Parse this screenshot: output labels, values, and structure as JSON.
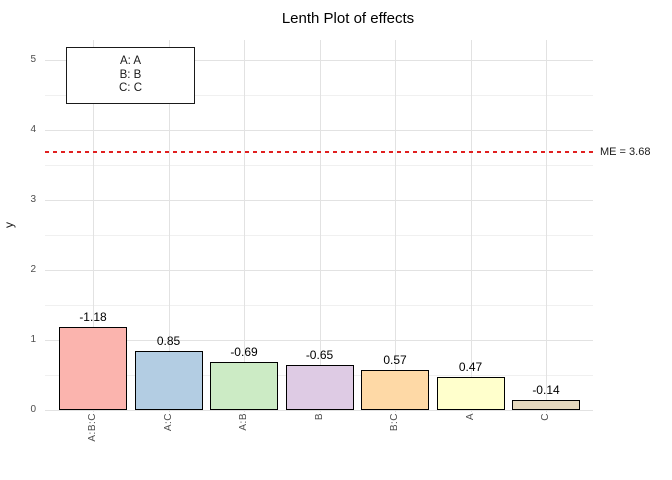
{
  "chart_data": {
    "type": "bar",
    "title": "Lenth Plot of effects",
    "xlabel": "",
    "ylabel": "y",
    "categories": [
      "A:B:C",
      "A:C",
      "A:B",
      "B",
      "B:C",
      "A",
      "C"
    ],
    "values": [
      1.18,
      0.85,
      0.69,
      0.65,
      0.57,
      0.47,
      0.14
    ],
    "signed_effects": [
      -1.18,
      0.85,
      -0.69,
      -0.65,
      0.57,
      0.47,
      -0.14
    ],
    "value_labels": [
      "-1.18",
      "0.85",
      "-0.69",
      "-0.65",
      "0.57",
      "0.47",
      "-0.14"
    ],
    "bar_colors": [
      "#FBB4AE",
      "#B3CDE3",
      "#CCEBC5",
      "#DECBE4",
      "#FED9A6",
      "#FFFFCC",
      "#E5D8BD"
    ],
    "bar_border_color": "#000000",
    "yticks": [
      0,
      1,
      2,
      3,
      4,
      5
    ],
    "ylim": [
      0,
      5.3
    ],
    "grid": true,
    "legend_position": "top-left",
    "legend_lines": [
      "A: A",
      "B: B",
      "C: C"
    ],
    "reference_line": {
      "value": 3.68,
      "label": "ME =  3.68",
      "color": "#e02020",
      "style": "dashed"
    }
  }
}
